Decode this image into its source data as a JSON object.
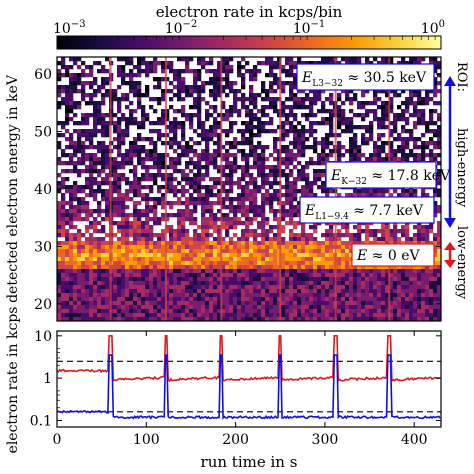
{
  "colors": {
    "accent_blue": "#1010e0",
    "accent_red": "#e01818",
    "colormap": [
      "#000004",
      "#1b0c41",
      "#4a0c6b",
      "#781c6d",
      "#a52c60",
      "#cf4446",
      "#ed6925",
      "#fb9b06",
      "#f7d13d",
      "#fcffa4"
    ]
  },
  "chart_data": [
    {
      "type": "heatmap",
      "title": "electron rate in kcps/bin",
      "colorbar": {
        "scale": "log",
        "range": [
          0.001,
          1
        ],
        "ticks": [
          "10",
          "10",
          "10",
          "10"
        ],
        "tick_exponents": [
          "−3",
          "−2",
          "−1",
          "0"
        ]
      },
      "ylabel": "detected electron energy in keV",
      "ylim": [
        17,
        63
      ],
      "yticks": [
        20,
        30,
        40,
        50,
        60
      ],
      "xlim": [
        0,
        430
      ],
      "lines": [
        {
          "label_base": "E",
          "label_sub": "L3−32",
          "label_value": "≈ 30.5 keV",
          "energy": 34
        },
        {
          "label_base": "E",
          "label_sub": "K−32",
          "label_value": "≈ 17.8 keV",
          "energy": 45
        },
        {
          "label_base": "E",
          "label_sub": "L1−9.4",
          "label_value": "≈ 7.7 keV",
          "energy": 37
        },
        {
          "label_base": "E",
          "label_sub": "",
          "label_value": "≈ 0 eV",
          "energy": 28
        }
      ],
      "side_labels": {
        "roi": "ROI:",
        "high": "high-energy",
        "low": "low-energy"
      },
      "spike_times": [
        60,
        122,
        184,
        250,
        312,
        372
      ]
    },
    {
      "type": "line",
      "xlabel": "run time in s",
      "ylabel": "electron rate in kcps",
      "scale": "log",
      "ylim": [
        0.07,
        13
      ],
      "xlim": [
        0,
        430
      ],
      "xticks": [
        0,
        100,
        200,
        300,
        400
      ],
      "yticks": [
        0.1,
        1,
        10
      ],
      "ytick_labels": [
        "0.1",
        "1",
        "10"
      ],
      "dashed_lines": [
        2.5,
        0.16
      ],
      "spike_times": [
        60,
        122,
        184,
        250,
        312,
        372
      ],
      "series": [
        {
          "color": "red",
          "base": 1.5,
          "slope": 0.0025,
          "reset": 0.9,
          "spike": 10
        },
        {
          "color": "blue",
          "base": 0.16,
          "slope": -0.0002,
          "reset": 0.12,
          "spike": 3.5
        }
      ]
    }
  ]
}
